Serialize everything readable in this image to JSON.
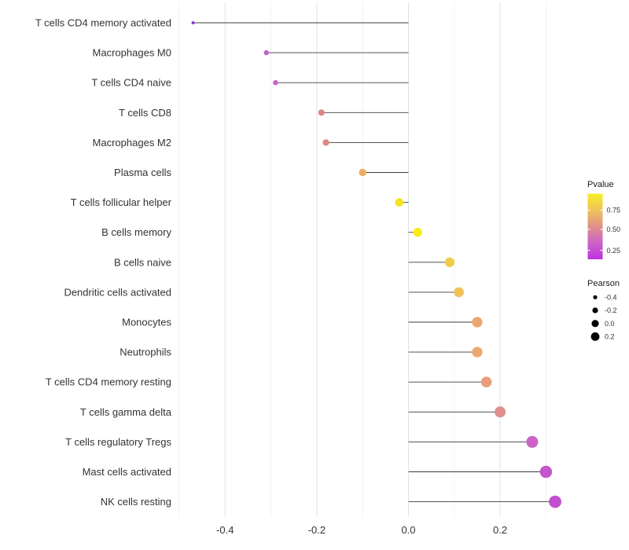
{
  "chart_data": {
    "type": "lollipop",
    "title": "",
    "xlabel": "",
    "ylabel": "",
    "baseline_x": 0.0,
    "xlim": [
      -0.51,
      0.36
    ],
    "x_ticks": [
      -0.4,
      -0.2,
      0.0,
      0.2
    ],
    "x_tick_labels": [
      "-0.4",
      "-0.2",
      "0.0",
      "0.2"
    ],
    "grid": "vertical minor lines every 0.1, major every 0.2, light gray, no axis lines",
    "legend_position": "right",
    "points": [
      {
        "category": "T cells CD4 memory activated",
        "pearson": -0.47,
        "color": "#8F35D2"
      },
      {
        "category": "Macrophages M0",
        "pearson": -0.31,
        "color": "#C35FD1"
      },
      {
        "category": "T cells CD4 naive",
        "pearson": -0.29,
        "color": "#C966CC"
      },
      {
        "category": "T cells CD8",
        "pearson": -0.19,
        "color": "#DD8886"
      },
      {
        "category": "Macrophages M2",
        "pearson": -0.18,
        "color": "#DC8883"
      },
      {
        "category": "Plasma cells",
        "pearson": -0.1,
        "color": "#EDAE60"
      },
      {
        "category": "T cells follicular helper",
        "pearson": -0.02,
        "color": "#F2E51F"
      },
      {
        "category": "B cells memory",
        "pearson": 0.02,
        "color": "#F5ED15"
      },
      {
        "category": "B cells naive",
        "pearson": 0.09,
        "color": "#F0CC4B"
      },
      {
        "category": "Dendritic cells activated",
        "pearson": 0.11,
        "color": "#EEC257"
      },
      {
        "category": "Monocytes",
        "pearson": 0.15,
        "color": "#ECA76C"
      },
      {
        "category": "Neutrophils",
        "pearson": 0.15,
        "color": "#ECA76C"
      },
      {
        "category": "T cells CD4 memory resting",
        "pearson": 0.17,
        "color": "#E99D7A"
      },
      {
        "category": "T cells gamma delta",
        "pearson": 0.2,
        "color": "#E28E8E"
      },
      {
        "category": "T cells regulatory  Tregs",
        "pearson": 0.27,
        "color": "#CB64C5"
      },
      {
        "category": "Mast cells activated",
        "pearson": 0.3,
        "color": "#C455CB"
      },
      {
        "category": "NK cells resting",
        "pearson": 0.32,
        "color": "#C14FCE"
      }
    ]
  },
  "legend": {
    "pvalue": {
      "title": "Pvalue",
      "tick_labels": [
        "0.75",
        "0.50",
        "0.25"
      ],
      "gradient_top_to_bottom": [
        "#F8EE26",
        "#EFC35B",
        "#E09089",
        "#CC63C7",
        "#BC33DF"
      ]
    },
    "pearson": {
      "title": "Pearson",
      "items": [
        {
          "label": "-0.4",
          "value": -0.4
        },
        {
          "label": "-0.2",
          "value": -0.2
        },
        {
          "label": "0.0",
          "value": 0.0
        },
        {
          "label": "0.2",
          "value": 0.2
        }
      ],
      "dot_color": "#000000"
    }
  },
  "colors": {
    "background": "#ffffff",
    "stem": "#3d3d3d",
    "grid_major": "#e2e2e2",
    "grid_minor": "#efefef",
    "axis_text": "#333333",
    "legend_title_text": "#1a1a1a",
    "legend_label_text": "#333333"
  }
}
